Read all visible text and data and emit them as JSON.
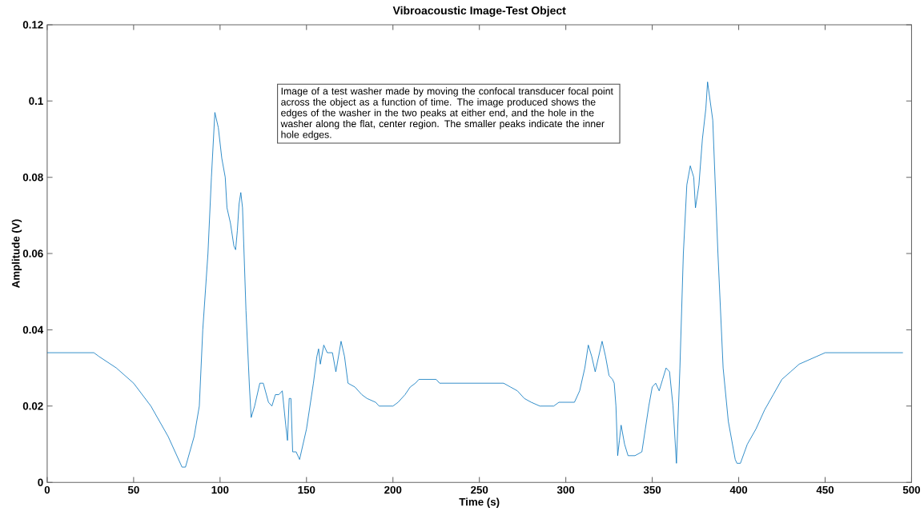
{
  "chart_data": {
    "type": "line",
    "title": "Vibroacoustic Image-Test Object",
    "xlabel": "Time (s)",
    "ylabel": "Amplitude (V)",
    "annotations": [
      "Image of a test washer made by moving the confocal transducer focal point across the object as a function of time.  The image produced shows the edges of the washer in the two peaks at either end, and the hole in the washer along the flat, center region.  The smaller peaks indicate the inner hole edges."
    ],
    "x": [
      0,
      27,
      30,
      40,
      50,
      60,
      70,
      78,
      80,
      85,
      88,
      90,
      93,
      95,
      97,
      99,
      101,
      103,
      104,
      106,
      108,
      109,
      110,
      111,
      112,
      113,
      115,
      117,
      118,
      120,
      123,
      125,
      128,
      130,
      132,
      134,
      136,
      138,
      139,
      140,
      141,
      142,
      144,
      146,
      148,
      150,
      152,
      154,
      156,
      157,
      158,
      160,
      162,
      165,
      167,
      170,
      172,
      174,
      178,
      182,
      185,
      190,
      192,
      200,
      203,
      207,
      210,
      213,
      215,
      225,
      227,
      264,
      268,
      272,
      276,
      280,
      285,
      293,
      296,
      305,
      308,
      311,
      313,
      315,
      317,
      320,
      321,
      323,
      325,
      327,
      328,
      329,
      330,
      331,
      332,
      334,
      336,
      340,
      344,
      346,
      348,
      350,
      352,
      354,
      356,
      358,
      360,
      362,
      364,
      366,
      368,
      370,
      372,
      374,
      375,
      377,
      379,
      381,
      382,
      385,
      388,
      391,
      394,
      398,
      399,
      401,
      405,
      410,
      415,
      420,
      425,
      430,
      435,
      440,
      445,
      450,
      495
    ],
    "series": [
      {
        "color": "#0072bd",
        "values": [
          0.034,
          0.034,
          0.033,
          0.03,
          0.026,
          0.02,
          0.012,
          0.004,
          0.004,
          0.012,
          0.02,
          0.04,
          0.06,
          0.08,
          0.097,
          0.093,
          0.085,
          0.08,
          0.072,
          0.068,
          0.062,
          0.061,
          0.066,
          0.073,
          0.076,
          0.072,
          0.045,
          0.025,
          0.017,
          0.02,
          0.026,
          0.026,
          0.021,
          0.02,
          0.023,
          0.023,
          0.024,
          0.015,
          0.011,
          0.022,
          0.022,
          0.008,
          0.008,
          0.006,
          0.01,
          0.014,
          0.02,
          0.026,
          0.033,
          0.035,
          0.031,
          0.036,
          0.034,
          0.034,
          0.029,
          0.037,
          0.033,
          0.026,
          0.025,
          0.023,
          0.022,
          0.021,
          0.02,
          0.02,
          0.021,
          0.023,
          0.025,
          0.026,
          0.027,
          0.027,
          0.026,
          0.026,
          0.025,
          0.024,
          0.022,
          0.021,
          0.02,
          0.02,
          0.021,
          0.021,
          0.024,
          0.03,
          0.036,
          0.033,
          0.029,
          0.035,
          0.037,
          0.033,
          0.028,
          0.027,
          0.026,
          0.02,
          0.007,
          0.011,
          0.015,
          0.01,
          0.007,
          0.007,
          0.008,
          0.014,
          0.02,
          0.025,
          0.026,
          0.024,
          0.027,
          0.03,
          0.029,
          0.02,
          0.005,
          0.03,
          0.06,
          0.078,
          0.083,
          0.08,
          0.072,
          0.078,
          0.09,
          0.098,
          0.105,
          0.095,
          0.06,
          0.03,
          0.016,
          0.006,
          0.005,
          0.005,
          0.01,
          0.014,
          0.019,
          0.023,
          0.027,
          0.029,
          0.031,
          0.032,
          0.033,
          0.034,
          0.034
        ]
      }
    ],
    "xlim": [
      0,
      500
    ],
    "ylim": [
      0,
      0.12
    ],
    "xticks": [
      0,
      50,
      100,
      150,
      200,
      250,
      300,
      350,
      400,
      450,
      500
    ],
    "yticks": [
      0,
      0.02,
      0.04,
      0.06,
      0.08,
      0.1,
      0.12
    ]
  }
}
